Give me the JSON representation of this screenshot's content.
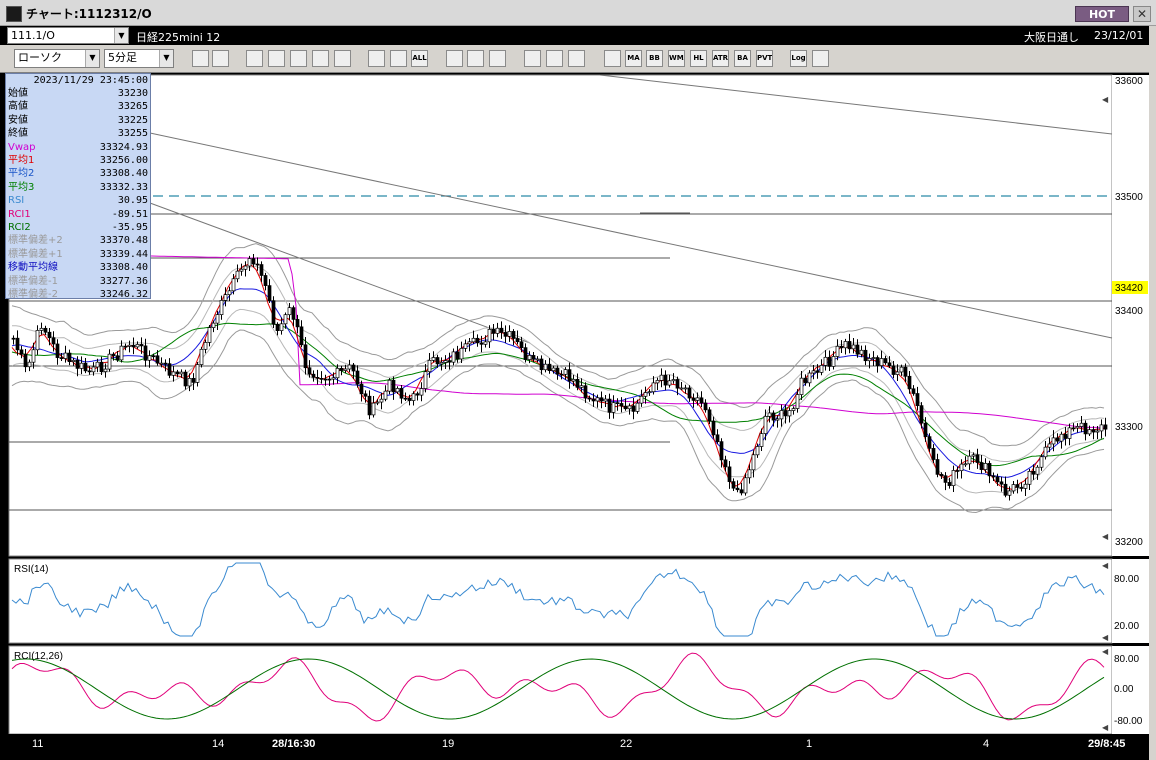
{
  "window": {
    "title": "チャート:1112312/O",
    "hot_label": "HOT",
    "close_label": "✕"
  },
  "symbol_row": {
    "code": "111.1/O",
    "name": "日経225mini 12",
    "session": "大阪日通し",
    "date": "23/12/01"
  },
  "controls": {
    "chart_type": "ローソク",
    "interval": "5分足"
  },
  "toolbar": {
    "buttons": [
      {
        "name": "zoom-icon",
        "label": ""
      },
      {
        "name": "bar-width-icon",
        "label": ""
      },
      {
        "name": "scissors-icon",
        "label": ""
      },
      {
        "name": "search-q-icon",
        "label": ""
      },
      {
        "name": "chart-window-icon",
        "label": ""
      },
      {
        "name": "scale-icon",
        "label": ""
      },
      {
        "name": "disabled-icon",
        "label": ""
      },
      {
        "name": "candle-prev-icon",
        "label": ""
      },
      {
        "name": "candle-next-icon",
        "label": ""
      },
      {
        "name": "all-icon",
        "label": "ALL"
      },
      {
        "name": "pen-icon",
        "label": ""
      },
      {
        "name": "pointer-icon",
        "label": ""
      },
      {
        "name": "erase-icon",
        "label": ""
      },
      {
        "name": "settings-icon",
        "label": ""
      },
      {
        "name": "paint-icon",
        "label": ""
      },
      {
        "name": "color-icon",
        "label": ""
      },
      {
        "name": "stack-icon",
        "label": ""
      },
      {
        "name": "ma-icon",
        "label": "MA"
      },
      {
        "name": "bb-icon",
        "label": "BB"
      },
      {
        "name": "wma-icon",
        "label": "WMA"
      },
      {
        "name": "hl-icon",
        "label": "HL"
      },
      {
        "name": "atr-icon",
        "label": "ATR"
      },
      {
        "name": "ba-icon",
        "label": "BA"
      },
      {
        "name": "pvt-icon",
        "label": "PVT"
      },
      {
        "name": "log-icon",
        "label": "Log"
      },
      {
        "name": "export-icon",
        "label": ""
      }
    ]
  },
  "info": {
    "datetime": "2023/11/29  23:45:00",
    "rows": [
      {
        "label": "始値",
        "value": "33230",
        "color": "#000000"
      },
      {
        "label": "高値",
        "value": "33265",
        "color": "#000000"
      },
      {
        "label": "安値",
        "value": "33225",
        "color": "#000000"
      },
      {
        "label": "終値",
        "value": "33255",
        "color": "#000000"
      },
      {
        "label": "Vwap",
        "value": "33324.93",
        "color": "#d000d0"
      },
      {
        "label": "平均1",
        "value": "33256.00",
        "color": "#e00000"
      },
      {
        "label": "平均2",
        "value": "33308.40",
        "color": "#1a55c8"
      },
      {
        "label": "平均3",
        "value": "33332.33",
        "color": "#008000"
      },
      {
        "label": "RSI",
        "value": "30.95",
        "color": "#3a8ad0"
      },
      {
        "label": "RCI1",
        "value": "-89.51",
        "color": "#e0007a"
      },
      {
        "label": "RCI2",
        "value": "-35.95",
        "color": "#007000"
      },
      {
        "label": "標準偏差+2",
        "value": "33370.48",
        "color": "#9a9a9a"
      },
      {
        "label": "標準偏差+1",
        "value": "33339.44",
        "color": "#9a9a9a"
      },
      {
        "label": "移動平均線",
        "value": "33308.40",
        "color": "#1010c0"
      },
      {
        "label": "標準偏差-1",
        "value": "33277.36",
        "color": "#9a9a9a"
      },
      {
        "label": "標準偏差-2",
        "value": "33246.32",
        "color": "#9a9a9a"
      }
    ]
  },
  "price_axis": {
    "labels": [
      "33600",
      "33500",
      "33400",
      "33300",
      "33200"
    ],
    "current": "33420",
    "current_bg": "#ffff00"
  },
  "rsi_panel": {
    "title": "RSI(14)",
    "labels": [
      "80.00",
      "20.00"
    ],
    "color": "#3a8ad0"
  },
  "rci_panel": {
    "title": "RCI(12,26)",
    "labels": [
      "80.00",
      "0.00",
      "-80.00"
    ]
  },
  "x_axis": {
    "labels": [
      "11",
      "14",
      "28/16:30",
      "19",
      "22",
      "1",
      "4",
      "29/8:45"
    ]
  },
  "colors": {
    "candle_up": "#ffffff",
    "candle_down": "#000000",
    "ma1": "#e00000",
    "ma2": "#1a1ae0",
    "ma3": "#008000",
    "vwap": "#d000d0",
    "band": "#9a9a9a",
    "dashed": "#2a8aa8"
  }
}
